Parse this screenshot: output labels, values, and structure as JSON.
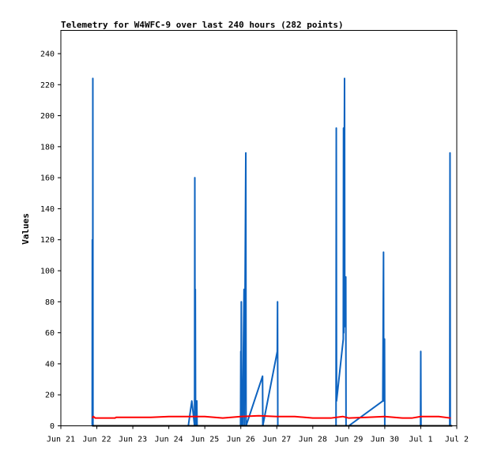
{
  "chart_data": {
    "type": "line",
    "title": "Telemetry for W4WFC-9 over last 240 hours (282 points)",
    "xlabel": "",
    "ylabel": "Values",
    "xlim": [
      "2024-06-21 00:00",
      "2024-07-02 00:00"
    ],
    "ylim": [
      0,
      255
    ],
    "x_tick_labels": [
      "Jun 21",
      "Jun 22",
      "Jun 23",
      "Jun 24",
      "Jun 25",
      "Jun 26",
      "Jun 27",
      "Jun 28",
      "Jun 29",
      "Jun 30",
      "Jul 1",
      "Jul 2"
    ],
    "y_ticks": [
      0,
      20,
      40,
      60,
      80,
      100,
      120,
      140,
      160,
      180,
      200,
      220,
      240
    ],
    "grid": false,
    "legend": "none",
    "series": [
      {
        "color": "#0d63c0",
        "points": [
          [
            "2024-06-21 20:55",
            0
          ],
          [
            "2024-06-21 21:00",
            120
          ],
          [
            "2024-06-21 21:05",
            0
          ],
          [
            "2024-06-21 21:15",
            0
          ],
          [
            "2024-06-21 21:20",
            224
          ],
          [
            "2024-06-21 21:25",
            0
          ],
          [
            "2024-06-24 13:00",
            0
          ],
          [
            "2024-06-24 15:20",
            16
          ],
          [
            "2024-06-24 17:10",
            0
          ],
          [
            "2024-06-24 17:20",
            160
          ],
          [
            "2024-06-24 17:30",
            0
          ],
          [
            "2024-06-24 17:40",
            88
          ],
          [
            "2024-06-24 17:50",
            0
          ],
          [
            "2024-06-24 18:40",
            16
          ],
          [
            "2024-06-24 18:50",
            0
          ],
          [
            "2024-06-25 23:50",
            0
          ],
          [
            "2024-06-26 00:00",
            48
          ],
          [
            "2024-06-26 00:10",
            0
          ],
          [
            "2024-06-26 00:20",
            80
          ],
          [
            "2024-06-26 00:30",
            0
          ],
          [
            "2024-06-26 01:00",
            24
          ],
          [
            "2024-06-26 01:10",
            0
          ],
          [
            "2024-06-26 02:10",
            88
          ],
          [
            "2024-06-26 02:20",
            0
          ],
          [
            "2024-06-26 03:20",
            176
          ],
          [
            "2024-06-26 03:30",
            0
          ],
          [
            "2024-06-26 14:30",
            32
          ],
          [
            "2024-06-26 14:40",
            0
          ],
          [
            "2024-06-27 00:20",
            48
          ],
          [
            "2024-06-27 00:30",
            80
          ],
          [
            "2024-06-27 00:40",
            0
          ],
          [
            "2024-06-28 15:30",
            0
          ],
          [
            "2024-06-28 15:40",
            192
          ],
          [
            "2024-06-28 15:50",
            16
          ],
          [
            "2024-06-28 20:20",
            56
          ],
          [
            "2024-06-28 20:30",
            192
          ],
          [
            "2024-06-28 20:40",
            60
          ],
          [
            "2024-06-28 21:10",
            224
          ],
          [
            "2024-06-28 21:20",
            64
          ],
          [
            "2024-06-28 22:00",
            96
          ],
          [
            "2024-06-28 22:10",
            0
          ],
          [
            "2024-06-29 00:00",
            0
          ],
          [
            "2024-06-29 22:40",
            16
          ],
          [
            "2024-06-29 23:10",
            112
          ],
          [
            "2024-06-29 23:20",
            16
          ],
          [
            "2024-06-29 23:50",
            56
          ],
          [
            "2024-06-30 00:00",
            0
          ],
          [
            "2024-06-30 23:50",
            0
          ],
          [
            "2024-07-01 00:00",
            48
          ],
          [
            "2024-07-01 00:10",
            0
          ],
          [
            "2024-07-01 19:20",
            0
          ],
          [
            "2024-07-01 19:30",
            176
          ],
          [
            "2024-07-01 19:40",
            0
          ]
        ]
      },
      {
        "color": "#ff0000",
        "points": [
          [
            "2024-06-21 21:00",
            5
          ],
          [
            "2024-06-21 21:40",
            6
          ],
          [
            "2024-06-21 23:00",
            5
          ],
          [
            "2024-06-22 12:00",
            5
          ],
          [
            "2024-06-22 13:00",
            5.5
          ],
          [
            "2024-06-23 12:00",
            5.5
          ],
          [
            "2024-06-24 00:00",
            6
          ],
          [
            "2024-06-24 20:00",
            6
          ],
          [
            "2024-06-25 00:00",
            6
          ],
          [
            "2024-06-25 12:00",
            5
          ],
          [
            "2024-06-26 00:00",
            6
          ],
          [
            "2024-06-26 12:00",
            6.5
          ],
          [
            "2024-06-27 00:00",
            6
          ],
          [
            "2024-06-27 12:00",
            6
          ],
          [
            "2024-06-28 00:00",
            5
          ],
          [
            "2024-06-28 12:00",
            5
          ],
          [
            "2024-06-28 20:00",
            6
          ],
          [
            "2024-06-29 00:00",
            5
          ],
          [
            "2024-06-29 12:00",
            5.5
          ],
          [
            "2024-06-30 00:00",
            6
          ],
          [
            "2024-06-30 12:00",
            5
          ],
          [
            "2024-06-30 18:00",
            5
          ],
          [
            "2024-07-01 00:00",
            6
          ],
          [
            "2024-07-01 12:00",
            6
          ],
          [
            "2024-07-01 20:00",
            5
          ]
        ]
      },
      {
        "color": "#000000",
        "points": [
          [
            "2024-06-21 21:00",
            0
          ],
          [
            "2024-07-01 21:00",
            0
          ]
        ]
      }
    ]
  }
}
